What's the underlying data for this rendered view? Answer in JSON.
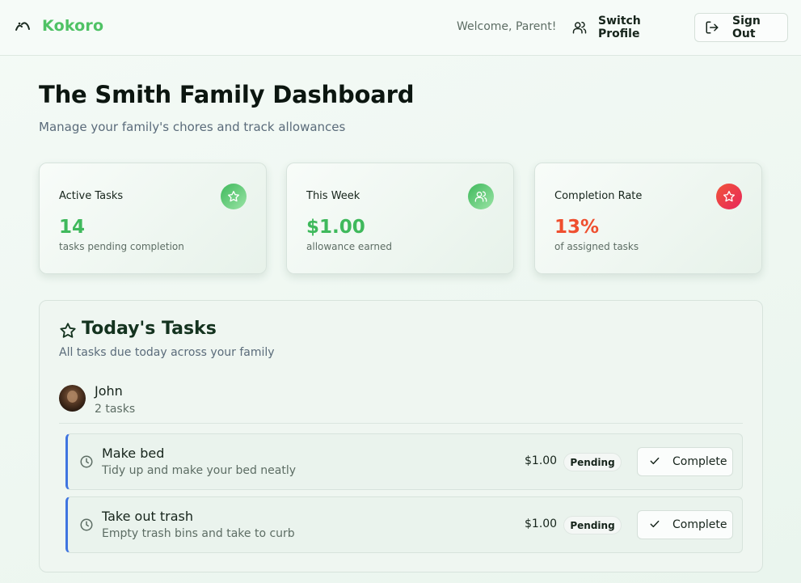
{
  "header": {
    "brand": "Kokoro",
    "welcome": "Welcome, Parent!",
    "switch_profile": "Switch Profile",
    "sign_out": "Sign Out"
  },
  "page": {
    "title": "The Smith Family Dashboard",
    "subtitle": "Manage your family's chores and track allowances"
  },
  "stats": [
    {
      "label": "Active Tasks",
      "value": "14",
      "desc": "tasks pending completion",
      "icon": "star-icon",
      "color": "#3fb95c"
    },
    {
      "label": "This Week",
      "value": "$1.00",
      "desc": "allowance earned",
      "icon": "users-icon",
      "color": "#3fb95c"
    },
    {
      "label": "Completion Rate",
      "value": "13%",
      "desc": "of assigned tasks",
      "icon": "star-icon",
      "color": "#ef4f2f"
    }
  ],
  "tasks_panel": {
    "title": "Today's Tasks",
    "subtitle": "All tasks due today across your family",
    "member": {
      "name": "John",
      "count": "2 tasks"
    },
    "tasks": [
      {
        "title": "Make bed",
        "desc": "Tidy up and make your bed neatly",
        "amount": "$1.00",
        "status": "Pending",
        "action": "Complete"
      },
      {
        "title": "Take out trash",
        "desc": "Empty trash bins and take to curb",
        "amount": "$1.00",
        "status": "Pending",
        "action": "Complete"
      }
    ]
  },
  "colors": {
    "brand": "#4fc265",
    "accent_red": "#ef4f2f",
    "task_border": "#3f74e0"
  }
}
